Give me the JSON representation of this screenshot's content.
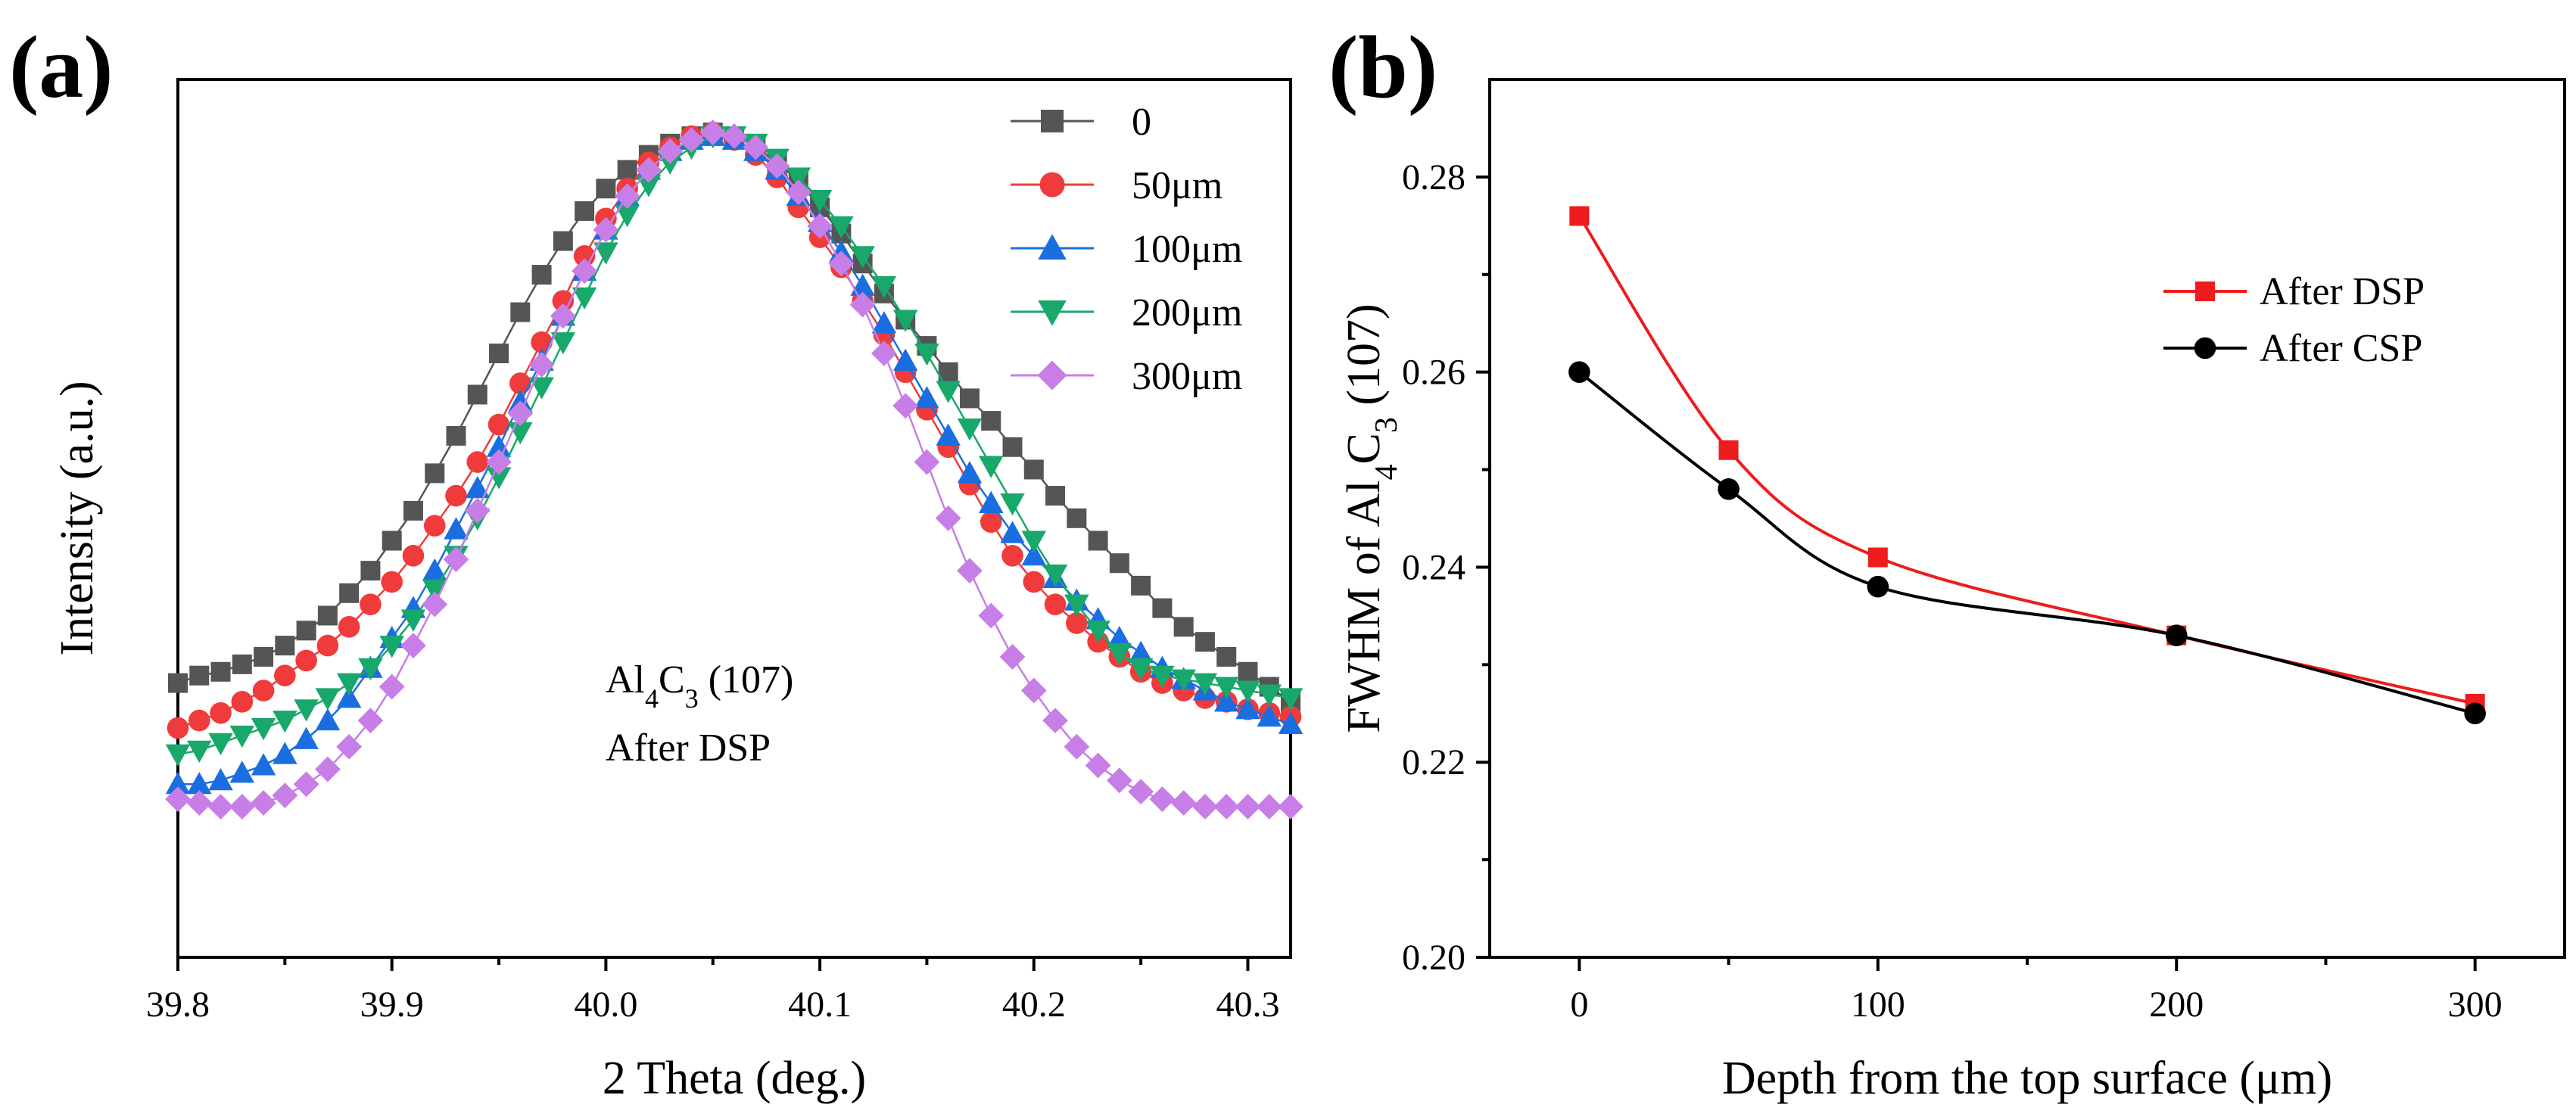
{
  "chart_data": [
    {
      "panel": "(a)",
      "type": "scatter",
      "subtype": "line-with-markers",
      "xlabel": "2 Theta (deg.)",
      "ylabel": "Intensity (a.u.)",
      "xlim": [
        39.8,
        40.32
      ],
      "ylim": [
        0,
        1
      ],
      "x_ticks": [
        "39.8",
        "39.9",
        "40.0",
        "40.1",
        "40.2",
        "40.3"
      ],
      "annotation": {
        "line1_main": "Al",
        "line1_sub1": "4",
        "line1_mid": "C",
        "line1_sub2": "3",
        "line1_rest": " (107)",
        "line2": "After DSP"
      },
      "x": [
        39.8,
        39.81,
        39.82,
        39.83,
        39.84,
        39.85,
        39.86,
        39.87,
        39.88,
        39.89,
        39.9,
        39.91,
        39.92,
        39.93,
        39.94,
        39.95,
        39.96,
        39.97,
        39.98,
        39.99,
        40.0,
        40.01,
        40.02,
        40.03,
        40.04,
        40.05,
        40.06,
        40.07,
        40.08,
        40.09,
        40.1,
        40.11,
        40.12,
        40.13,
        40.14,
        40.15,
        40.16,
        40.17,
        40.18,
        40.19,
        40.2,
        40.21,
        40.22,
        40.23,
        40.24,
        40.25,
        40.26,
        40.27,
        40.28,
        40.29,
        40.3,
        40.31,
        40.32
      ],
      "series": [
        {
          "name": "0",
          "color": "#555555",
          "marker": "square",
          "values": [
            0.26,
            0.27,
            0.275,
            0.285,
            0.295,
            0.31,
            0.33,
            0.35,
            0.38,
            0.41,
            0.45,
            0.49,
            0.54,
            0.59,
            0.645,
            0.7,
            0.755,
            0.805,
            0.85,
            0.89,
            0.92,
            0.945,
            0.965,
            0.98,
            0.99,
            0.995,
            0.99,
            0.975,
            0.955,
            0.93,
            0.895,
            0.86,
            0.82,
            0.78,
            0.745,
            0.71,
            0.675,
            0.64,
            0.61,
            0.575,
            0.545,
            0.51,
            0.48,
            0.45,
            0.42,
            0.39,
            0.36,
            0.335,
            0.315,
            0.295,
            0.275,
            0.255,
            0.235
          ]
        },
        {
          "name": "50μm",
          "color": "#ef3b3b",
          "marker": "circle",
          "values": [
            0.2,
            0.21,
            0.22,
            0.235,
            0.25,
            0.27,
            0.29,
            0.31,
            0.335,
            0.365,
            0.395,
            0.43,
            0.47,
            0.51,
            0.555,
            0.605,
            0.66,
            0.715,
            0.77,
            0.83,
            0.88,
            0.92,
            0.955,
            0.975,
            0.99,
            0.995,
            0.985,
            0.965,
            0.935,
            0.895,
            0.855,
            0.815,
            0.77,
            0.725,
            0.675,
            0.625,
            0.575,
            0.525,
            0.475,
            0.43,
            0.395,
            0.365,
            0.34,
            0.315,
            0.295,
            0.275,
            0.26,
            0.25,
            0.24,
            0.235,
            0.225,
            0.22,
            0.215
          ]
        },
        {
          "name": "100μm",
          "color": "#1a6ee0",
          "marker": "triangle-up",
          "values": [
            0.125,
            0.125,
            0.13,
            0.14,
            0.15,
            0.165,
            0.185,
            0.21,
            0.24,
            0.28,
            0.32,
            0.36,
            0.41,
            0.465,
            0.52,
            0.575,
            0.635,
            0.69,
            0.75,
            0.81,
            0.865,
            0.91,
            0.945,
            0.97,
            0.985,
            0.99,
            0.985,
            0.97,
            0.945,
            0.91,
            0.875,
            0.835,
            0.79,
            0.74,
            0.69,
            0.64,
            0.59,
            0.54,
            0.5,
            0.46,
            0.43,
            0.4,
            0.37,
            0.345,
            0.32,
            0.3,
            0.28,
            0.265,
            0.25,
            0.235,
            0.225,
            0.215,
            0.205
          ]
        },
        {
          "name": "200μm",
          "color": "#18a86b",
          "marker": "triangle-down",
          "values": [
            0.165,
            0.17,
            0.18,
            0.19,
            0.2,
            0.21,
            0.225,
            0.24,
            0.26,
            0.28,
            0.31,
            0.345,
            0.385,
            0.43,
            0.48,
            0.535,
            0.595,
            0.655,
            0.715,
            0.775,
            0.835,
            0.885,
            0.925,
            0.955,
            0.975,
            0.99,
            0.99,
            0.98,
            0.96,
            0.935,
            0.905,
            0.87,
            0.83,
            0.79,
            0.745,
            0.7,
            0.65,
            0.6,
            0.55,
            0.5,
            0.45,
            0.405,
            0.365,
            0.33,
            0.3,
            0.28,
            0.27,
            0.265,
            0.26,
            0.255,
            0.25,
            0.245,
            0.24
          ]
        },
        {
          "name": "300μm",
          "color": "#c77ee6",
          "marker": "diamond",
          "values": [
            0.105,
            0.1,
            0.095,
            0.095,
            0.1,
            0.11,
            0.125,
            0.145,
            0.175,
            0.21,
            0.255,
            0.31,
            0.365,
            0.425,
            0.49,
            0.555,
            0.62,
            0.685,
            0.75,
            0.81,
            0.865,
            0.91,
            0.945,
            0.97,
            0.985,
            0.995,
            0.99,
            0.975,
            0.95,
            0.915,
            0.87,
            0.82,
            0.765,
            0.7,
            0.63,
            0.555,
            0.48,
            0.41,
            0.35,
            0.295,
            0.25,
            0.21,
            0.175,
            0.15,
            0.13,
            0.115,
            0.105,
            0.1,
            0.095,
            0.095,
            0.095,
            0.095,
            0.095
          ]
        }
      ]
    },
    {
      "panel": "(b)",
      "type": "line",
      "xlabel": "Depth from the top surface (μm)",
      "ylabel": {
        "pre": "FWHM of Al",
        "sub1": "4",
        "mid": "C",
        "sub2": "3",
        "post": " (107)"
      },
      "x": [
        0,
        50,
        100,
        200,
        300
      ],
      "xlim": [
        -30,
        330
      ],
      "ylim": [
        0.2,
        0.29
      ],
      "x_ticks": [
        "0",
        "100",
        "200",
        "300"
      ],
      "y_ticks": [
        "0.20",
        "0.22",
        "0.24",
        "0.26",
        "0.28"
      ],
      "legend_position": "top-right",
      "series": [
        {
          "name": "After DSP",
          "color": "#ee1c1c",
          "marker": "square",
          "values": [
            0.276,
            0.252,
            0.241,
            0.233,
            0.226
          ]
        },
        {
          "name": "After CSP",
          "color": "#000000",
          "marker": "circle",
          "values": [
            0.26,
            0.248,
            0.238,
            0.233,
            0.225
          ]
        }
      ]
    }
  ]
}
